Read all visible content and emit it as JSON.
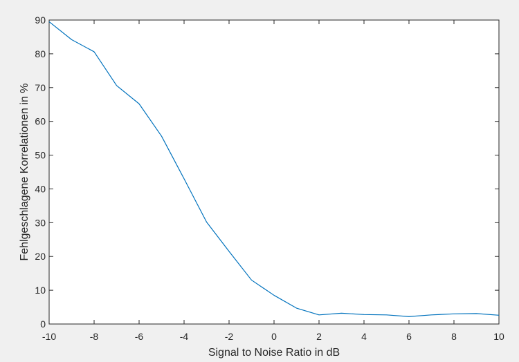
{
  "chart_data": {
    "type": "line",
    "title": "",
    "xlabel": "Signal to Noise Ratio in dB",
    "ylabel": "Fehlgeschlagene Korrelationen in %",
    "xlim": [
      -10,
      10
    ],
    "ylim": [
      0,
      90
    ],
    "xticks": [
      "-10",
      "-8",
      "-6",
      "-4",
      "-2",
      "0",
      "2",
      "4",
      "6",
      "8",
      "10"
    ],
    "yticks": [
      "0",
      "10",
      "20",
      "30",
      "40",
      "50",
      "60",
      "70",
      "80",
      "90"
    ],
    "grid": false,
    "legend": "none",
    "line_color": "#0072bd",
    "background_color": "#f0f0f0",
    "plot_area_color": "#ffffff",
    "series": [
      {
        "x": [
          -10,
          -9,
          -8,
          -7,
          -6,
          -5,
          -4,
          -3,
          -2,
          -1,
          0,
          1,
          2,
          3,
          4,
          5,
          6,
          7,
          8,
          9,
          10
        ],
        "y": [
          89.5,
          84.2,
          80.6,
          70.6,
          65.2,
          55.6,
          43.0,
          30.2,
          21.5,
          13.0,
          8.5,
          4.7,
          2.7,
          3.2,
          2.8,
          2.7,
          2.2,
          2.7,
          3.0,
          3.1,
          2.6
        ]
      }
    ]
  }
}
